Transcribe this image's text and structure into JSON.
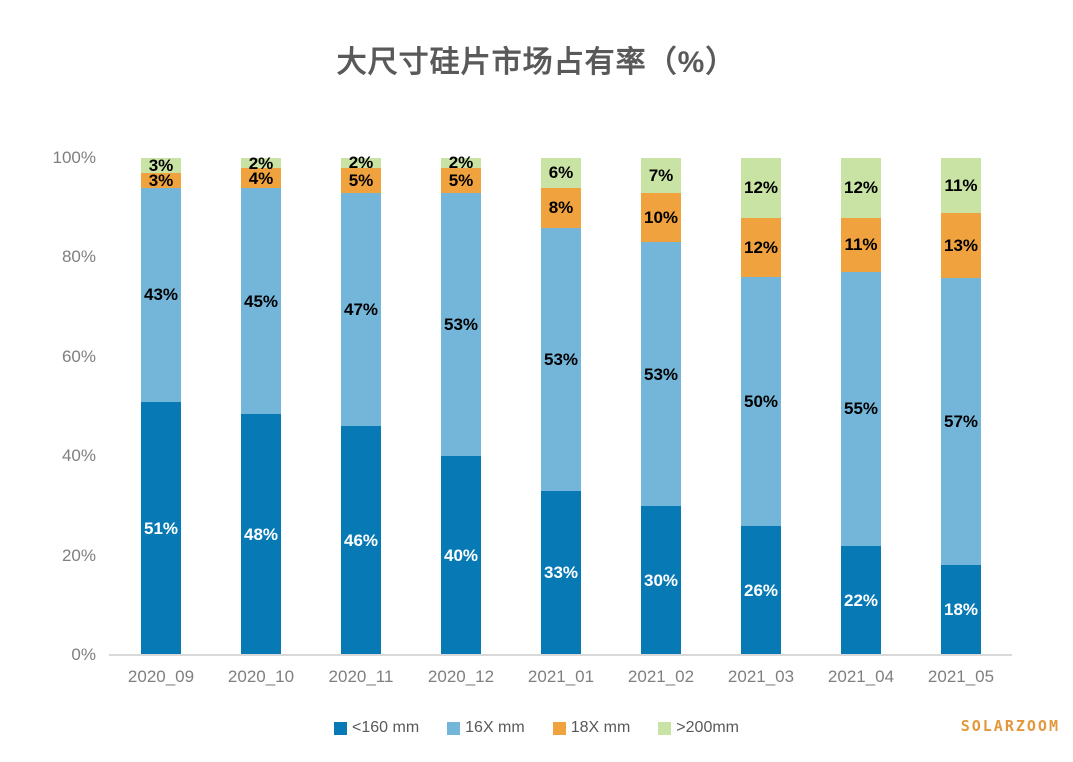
{
  "watermark": "SOLARZOOM",
  "colors": {
    "title_text": "#595959",
    "axis_text": "#7f7f7f",
    "axis_line": "#d9d9d9",
    "legend_text": "#595959",
    "watermark_text": "#E2983B"
  },
  "chart_data": {
    "type": "bar",
    "stacked": true,
    "title": "大尺寸硅片市场占有率（%）",
    "xlabel": "",
    "ylabel": "",
    "ylim": [
      0,
      100
    ],
    "ytick_step": 20,
    "ytick_suffix": "%",
    "grid": false,
    "legend_position": "bottom",
    "categories": [
      "2020_09",
      "2020_10",
      "2020_11",
      "2020_12",
      "2021_01",
      "2021_02",
      "2021_03",
      "2021_04",
      "2021_05"
    ],
    "series": [
      {
        "name": "<160 mm",
        "color": "#0779B5",
        "label_color": "#ffffff",
        "values": [
          51,
          48,
          46,
          40,
          33,
          30,
          26,
          22,
          18
        ]
      },
      {
        "name": "16X mm",
        "color": "#74B6DA",
        "label_color": "#000000",
        "values": [
          43,
          45,
          47,
          53,
          53,
          53,
          50,
          55,
          57
        ]
      },
      {
        "name": "18X mm",
        "color": "#F0A23E",
        "label_color": "#000000",
        "values": [
          3,
          4,
          5,
          5,
          8,
          10,
          12,
          11,
          13
        ]
      },
      {
        "name": ">200mm",
        "color": "#C8E3A4",
        "label_color": "#000000",
        "values": [
          3,
          2,
          2,
          2,
          6,
          7,
          12,
          12,
          11
        ]
      }
    ],
    "data_label_suffix": "%"
  }
}
